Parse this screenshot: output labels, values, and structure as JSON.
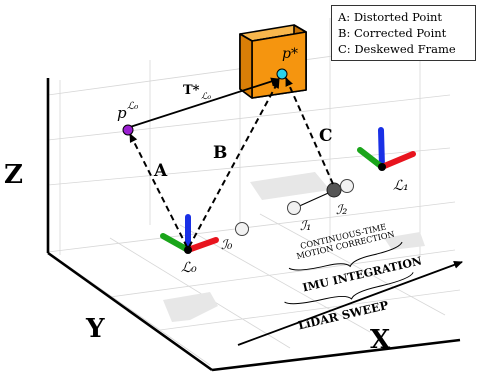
{
  "axes": {
    "x": "X",
    "y": "Y",
    "z": "Z"
  },
  "legend": [
    "A: Distorted Point",
    "B: Corrected Point",
    "C: Deskewed Frame"
  ],
  "arrows": {
    "a": "A",
    "b": "B",
    "c": "C"
  },
  "points": {
    "distorted": {
      "symbol": "p",
      "superscript": "ℒ₀"
    },
    "corrected": {
      "symbol": "p*"
    }
  },
  "transform": {
    "symbol": "T*",
    "subscript": "ℒ₀"
  },
  "frames": {
    "l0": "ℒ₀",
    "l1": "ℒ₁"
  },
  "imu_frames": {
    "i0": "ℐ₀",
    "i1": "ℐ₁",
    "i2": "ℐ₂"
  },
  "annotations": {
    "continuous_1": "CONTINUOUS-TIME",
    "continuous_2": "MOTION CORRECTION",
    "imu_integration": "IMU INTEGRATION",
    "lidar_sweep": "LiDAR SWEEP"
  },
  "colors": {
    "x_axis": "#e8141e",
    "y_axis": "#1aa51a",
    "z_axis": "#1930e6",
    "cube": "#f5950f",
    "distorted_point": "#9b1fd1",
    "corrected_point": "#29d3ea"
  }
}
